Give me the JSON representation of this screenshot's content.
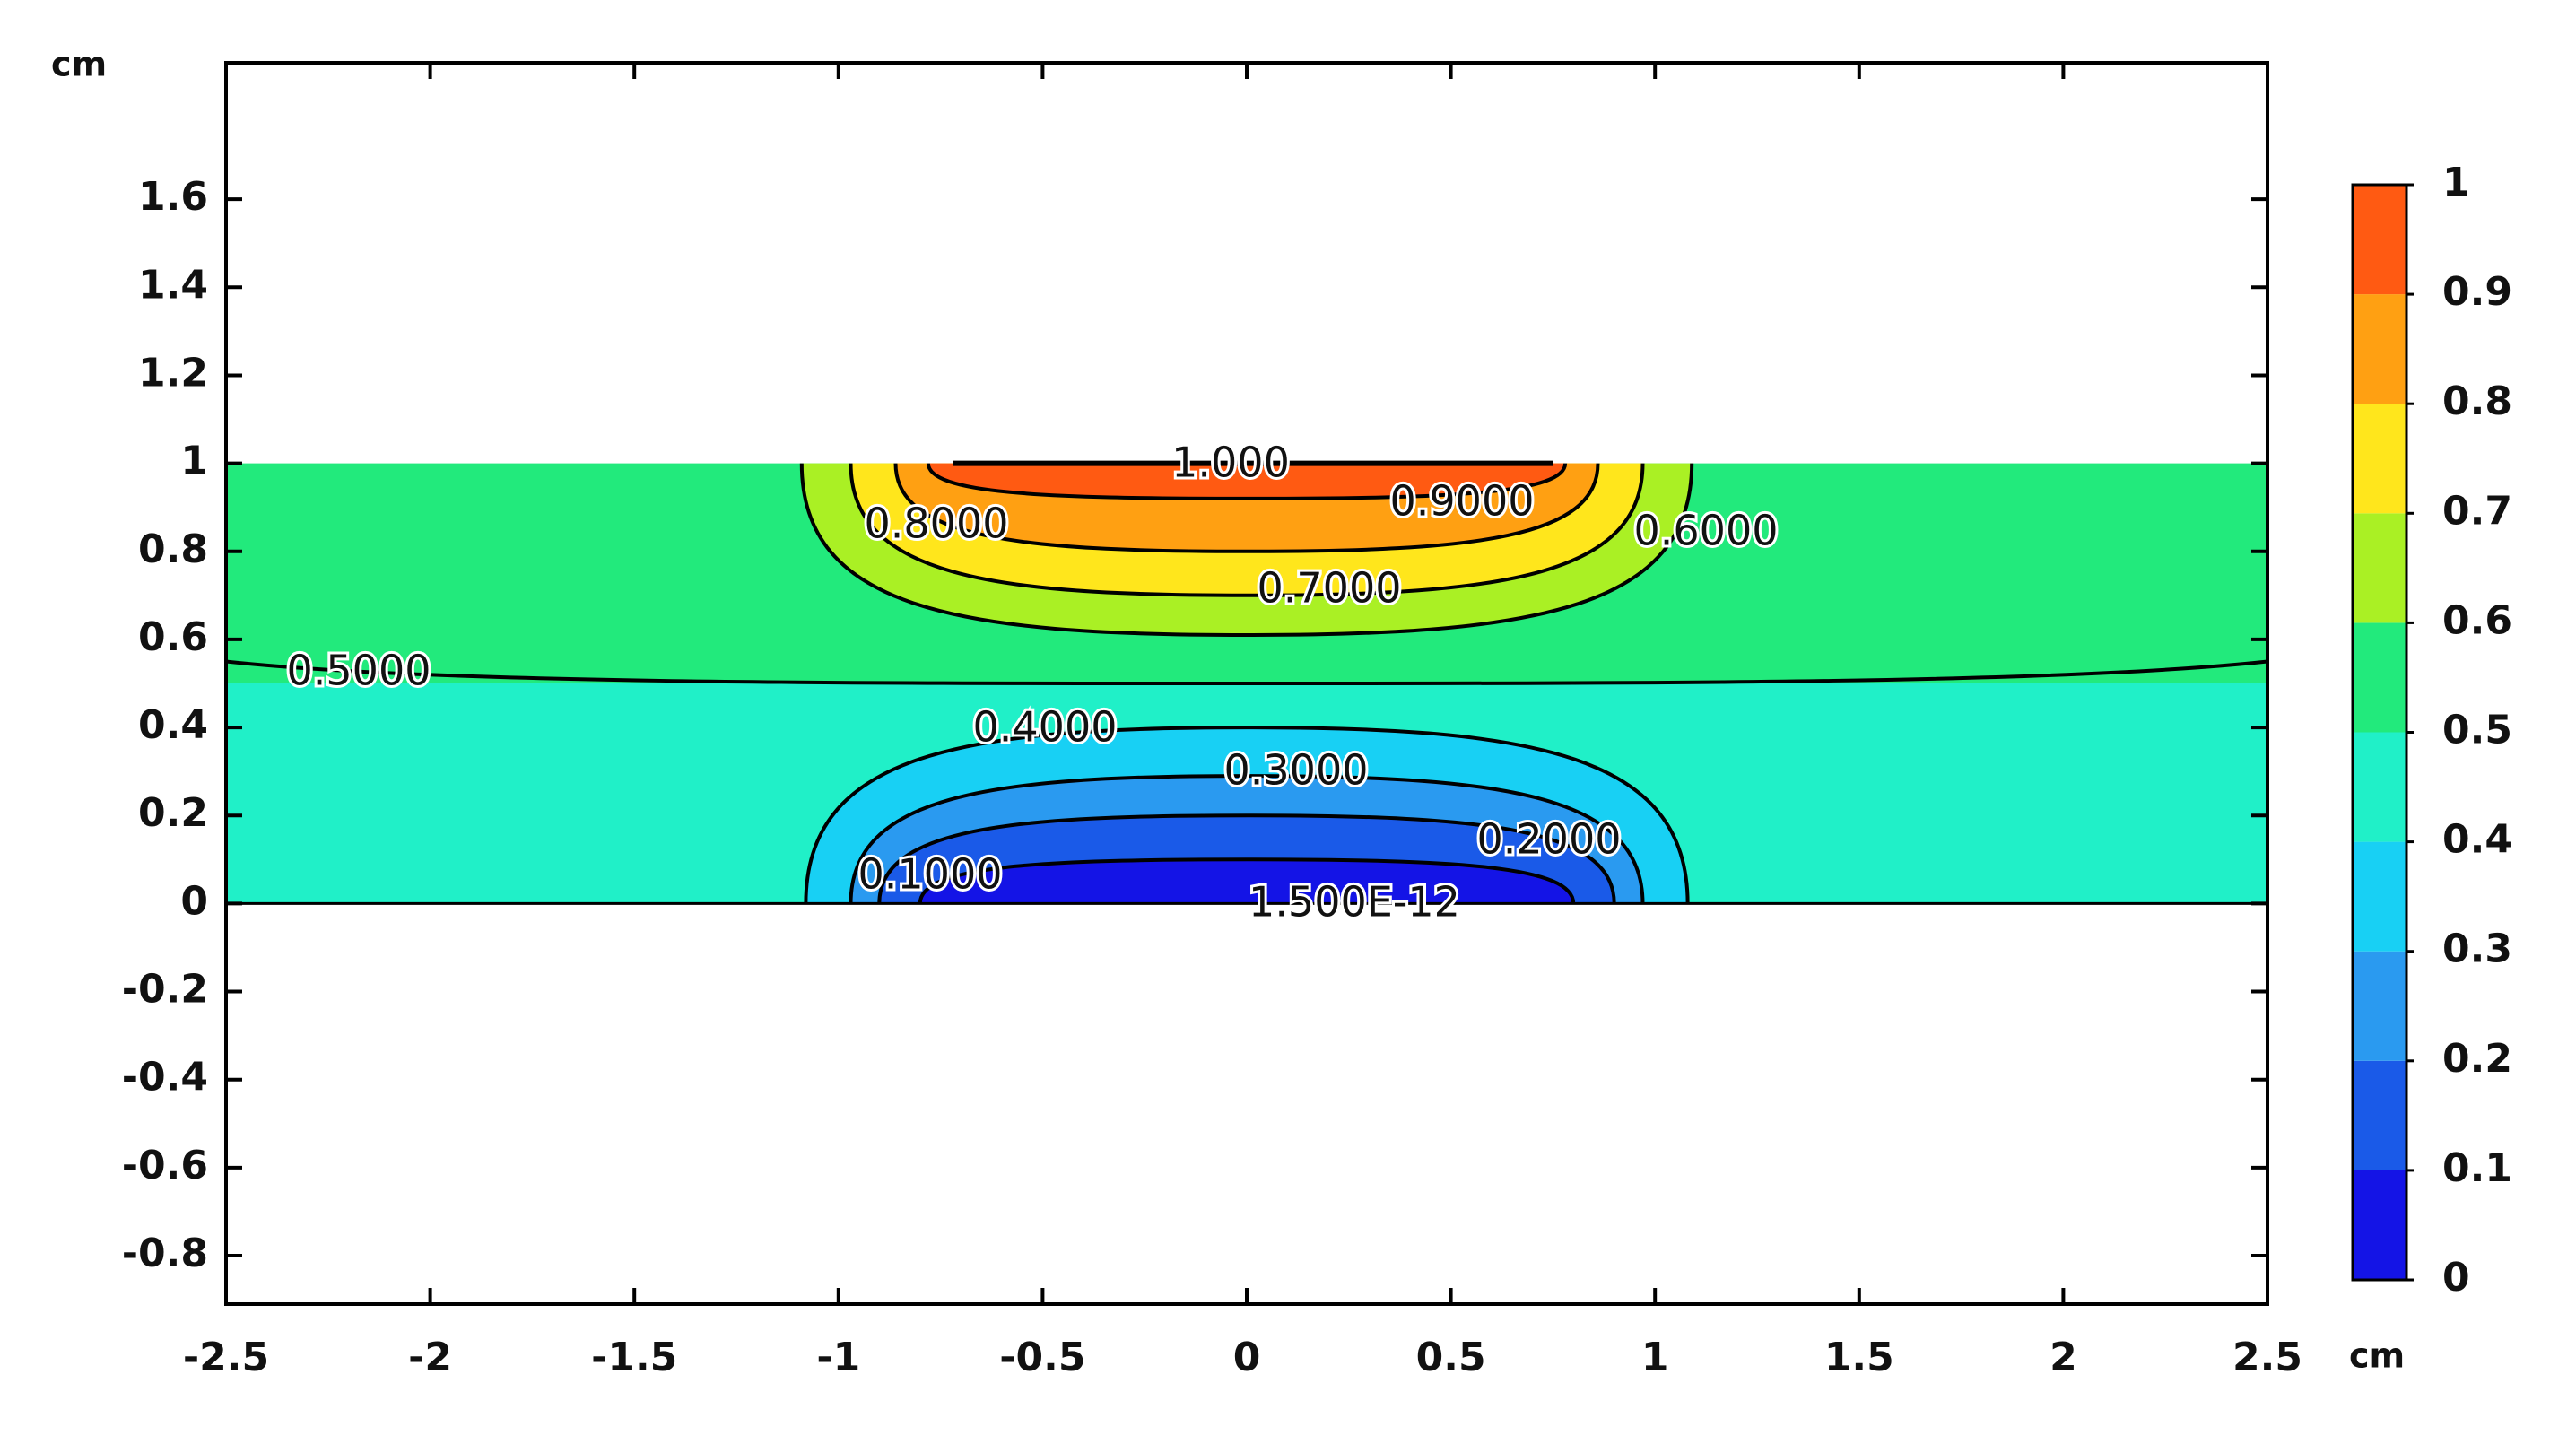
{
  "chart_data": {
    "type": "contour",
    "x_unit": "cm",
    "y_unit": "cm",
    "xlim": [
      -2.5,
      2.5
    ],
    "ylim": [
      -0.91,
      1.91
    ],
    "xticks": [
      -2.5,
      -2,
      -1.5,
      -1,
      -0.5,
      0,
      0.5,
      1,
      1.5,
      2,
      2.5
    ],
    "yticks": [
      -0.8,
      -0.6,
      -0.4,
      -0.2,
      0,
      0.2,
      0.4,
      0.6,
      0.8,
      1,
      1.2,
      1.4,
      1.6
    ],
    "levels": [
      0,
      0.1,
      0.2,
      0.3,
      0.4,
      0.5,
      0.6,
      0.7,
      0.8,
      0.9,
      1
    ],
    "colors": [
      "#1414e6",
      "#1a5ae8",
      "#2a9af0",
      "#18d0f4",
      "#20f0c8",
      "#22ea7c",
      "#aaf024",
      "#ffe61c",
      "#ffa012",
      "#ff5a12"
    ],
    "contour_labels": [
      {
        "value": 1,
        "label": "1.000"
      },
      {
        "value": 0.9,
        "label": "0.9000"
      },
      {
        "value": 0.8,
        "label": "0.8000"
      },
      {
        "value": 0.7,
        "label": "0.7000"
      },
      {
        "value": 0.6,
        "label": "0.6000"
      },
      {
        "value": 0.5,
        "label": "0.5000"
      },
      {
        "value": 0.4,
        "label": "0.4000"
      },
      {
        "value": 0.3,
        "label": "0.3000"
      },
      {
        "value": 0.2,
        "label": "0.2000"
      },
      {
        "value": 0.1,
        "label": "0.1000"
      },
      {
        "value": 1.5e-12,
        "label": "1.500E-12"
      }
    ]
  }
}
